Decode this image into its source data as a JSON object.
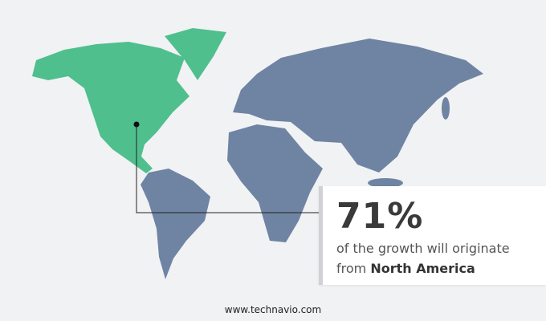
{
  "highlight": {
    "percent": "71%",
    "text_line1": "of the growth will originate",
    "text_line2_prefix": "from",
    "region": "North America"
  },
  "footer": {
    "website": "www.technavio.com"
  },
  "colors": {
    "highlight_region": "#4fbf8d",
    "other_regions": "#6f84a3",
    "background": "#f1f2f4"
  }
}
